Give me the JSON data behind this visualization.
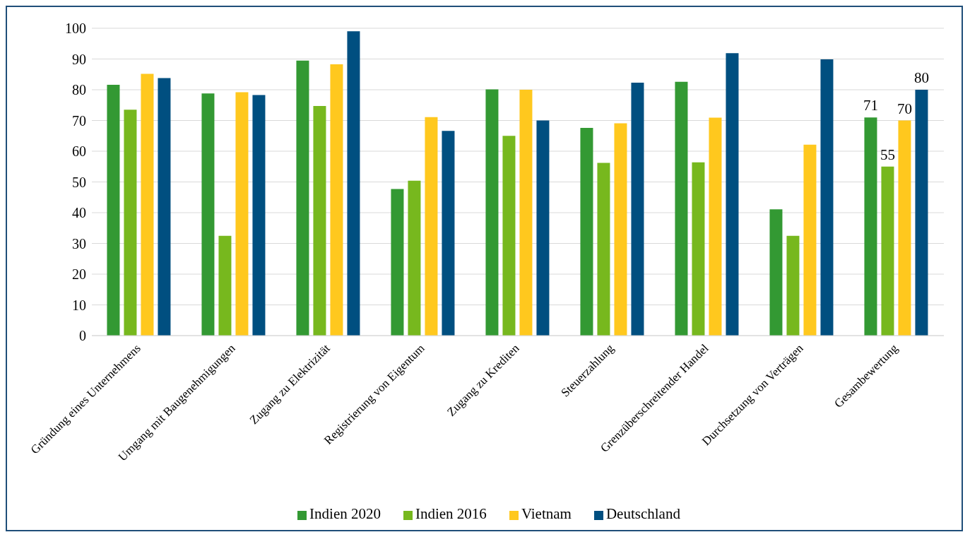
{
  "chart_data": {
    "type": "bar",
    "categories": [
      "Gründung eines Unternehmens",
      "Umgang mit Baugenehmigungen",
      "Zugang zu Elektrizität",
      "Registrierung von Eigentum",
      "Zugang zu Krediten",
      "Steuerzahlung",
      "Grenzüberschreitender Handel",
      "Durchsetzung von Verträgen",
      "Gesambewertung"
    ],
    "series": [
      {
        "name": "Indien 2020",
        "color": "#339933",
        "values": [
          81.6,
          78.8,
          89.5,
          47.7,
          80.1,
          67.6,
          82.6,
          41.1,
          71
        ],
        "value_labels": [
          null,
          null,
          null,
          null,
          null,
          null,
          null,
          null,
          "71"
        ]
      },
      {
        "name": "Indien 2016",
        "color": "#77b81e",
        "values": [
          73.5,
          32.5,
          74.7,
          50.4,
          65,
          56.2,
          56.4,
          32.5,
          55
        ],
        "value_labels": [
          null,
          null,
          null,
          null,
          null,
          null,
          null,
          null,
          "55"
        ]
      },
      {
        "name": "Vietnam",
        "color": "#ffc81e",
        "values": [
          85.2,
          79.2,
          88.3,
          71.1,
          80,
          69.1,
          70.9,
          62.1,
          70
        ],
        "value_labels": [
          null,
          null,
          null,
          null,
          null,
          null,
          null,
          null,
          "70"
        ]
      },
      {
        "name": "Deutschland",
        "color": "#004f80",
        "values": [
          83.8,
          78.3,
          99,
          66.6,
          70,
          82.3,
          91.9,
          89.9,
          80
        ],
        "value_labels": [
          null,
          null,
          null,
          null,
          null,
          null,
          null,
          null,
          "80"
        ]
      }
    ],
    "ylim": [
      0,
      100
    ],
    "yticks": [
      0,
      10,
      20,
      30,
      40,
      50,
      60,
      70,
      80,
      90,
      100
    ],
    "grid": "y",
    "legend": "bottom"
  }
}
